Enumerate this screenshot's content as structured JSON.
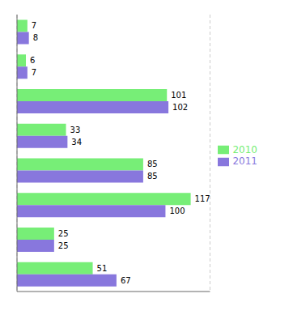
{
  "chart_data": {
    "type": "bar",
    "orientation": "horizontal",
    "categories": [
      null,
      null,
      null,
      null,
      null,
      null,
      null,
      null
    ],
    "series": [
      {
        "name": "2010",
        "color": "#77ee77",
        "values": [
          7,
          6,
          101,
          33,
          85,
          117,
          25,
          51
        ]
      },
      {
        "name": "2011",
        "color": "#8877dd",
        "values": [
          8,
          7,
          102,
          34,
          85,
          100,
          25,
          67
        ]
      }
    ],
    "xlim": [
      0,
      130
    ],
    "xticks": [
      20,
      40,
      60,
      80,
      100,
      120
    ],
    "grid": true,
    "tick_labels": false,
    "data_labels": true,
    "legend": "right"
  }
}
